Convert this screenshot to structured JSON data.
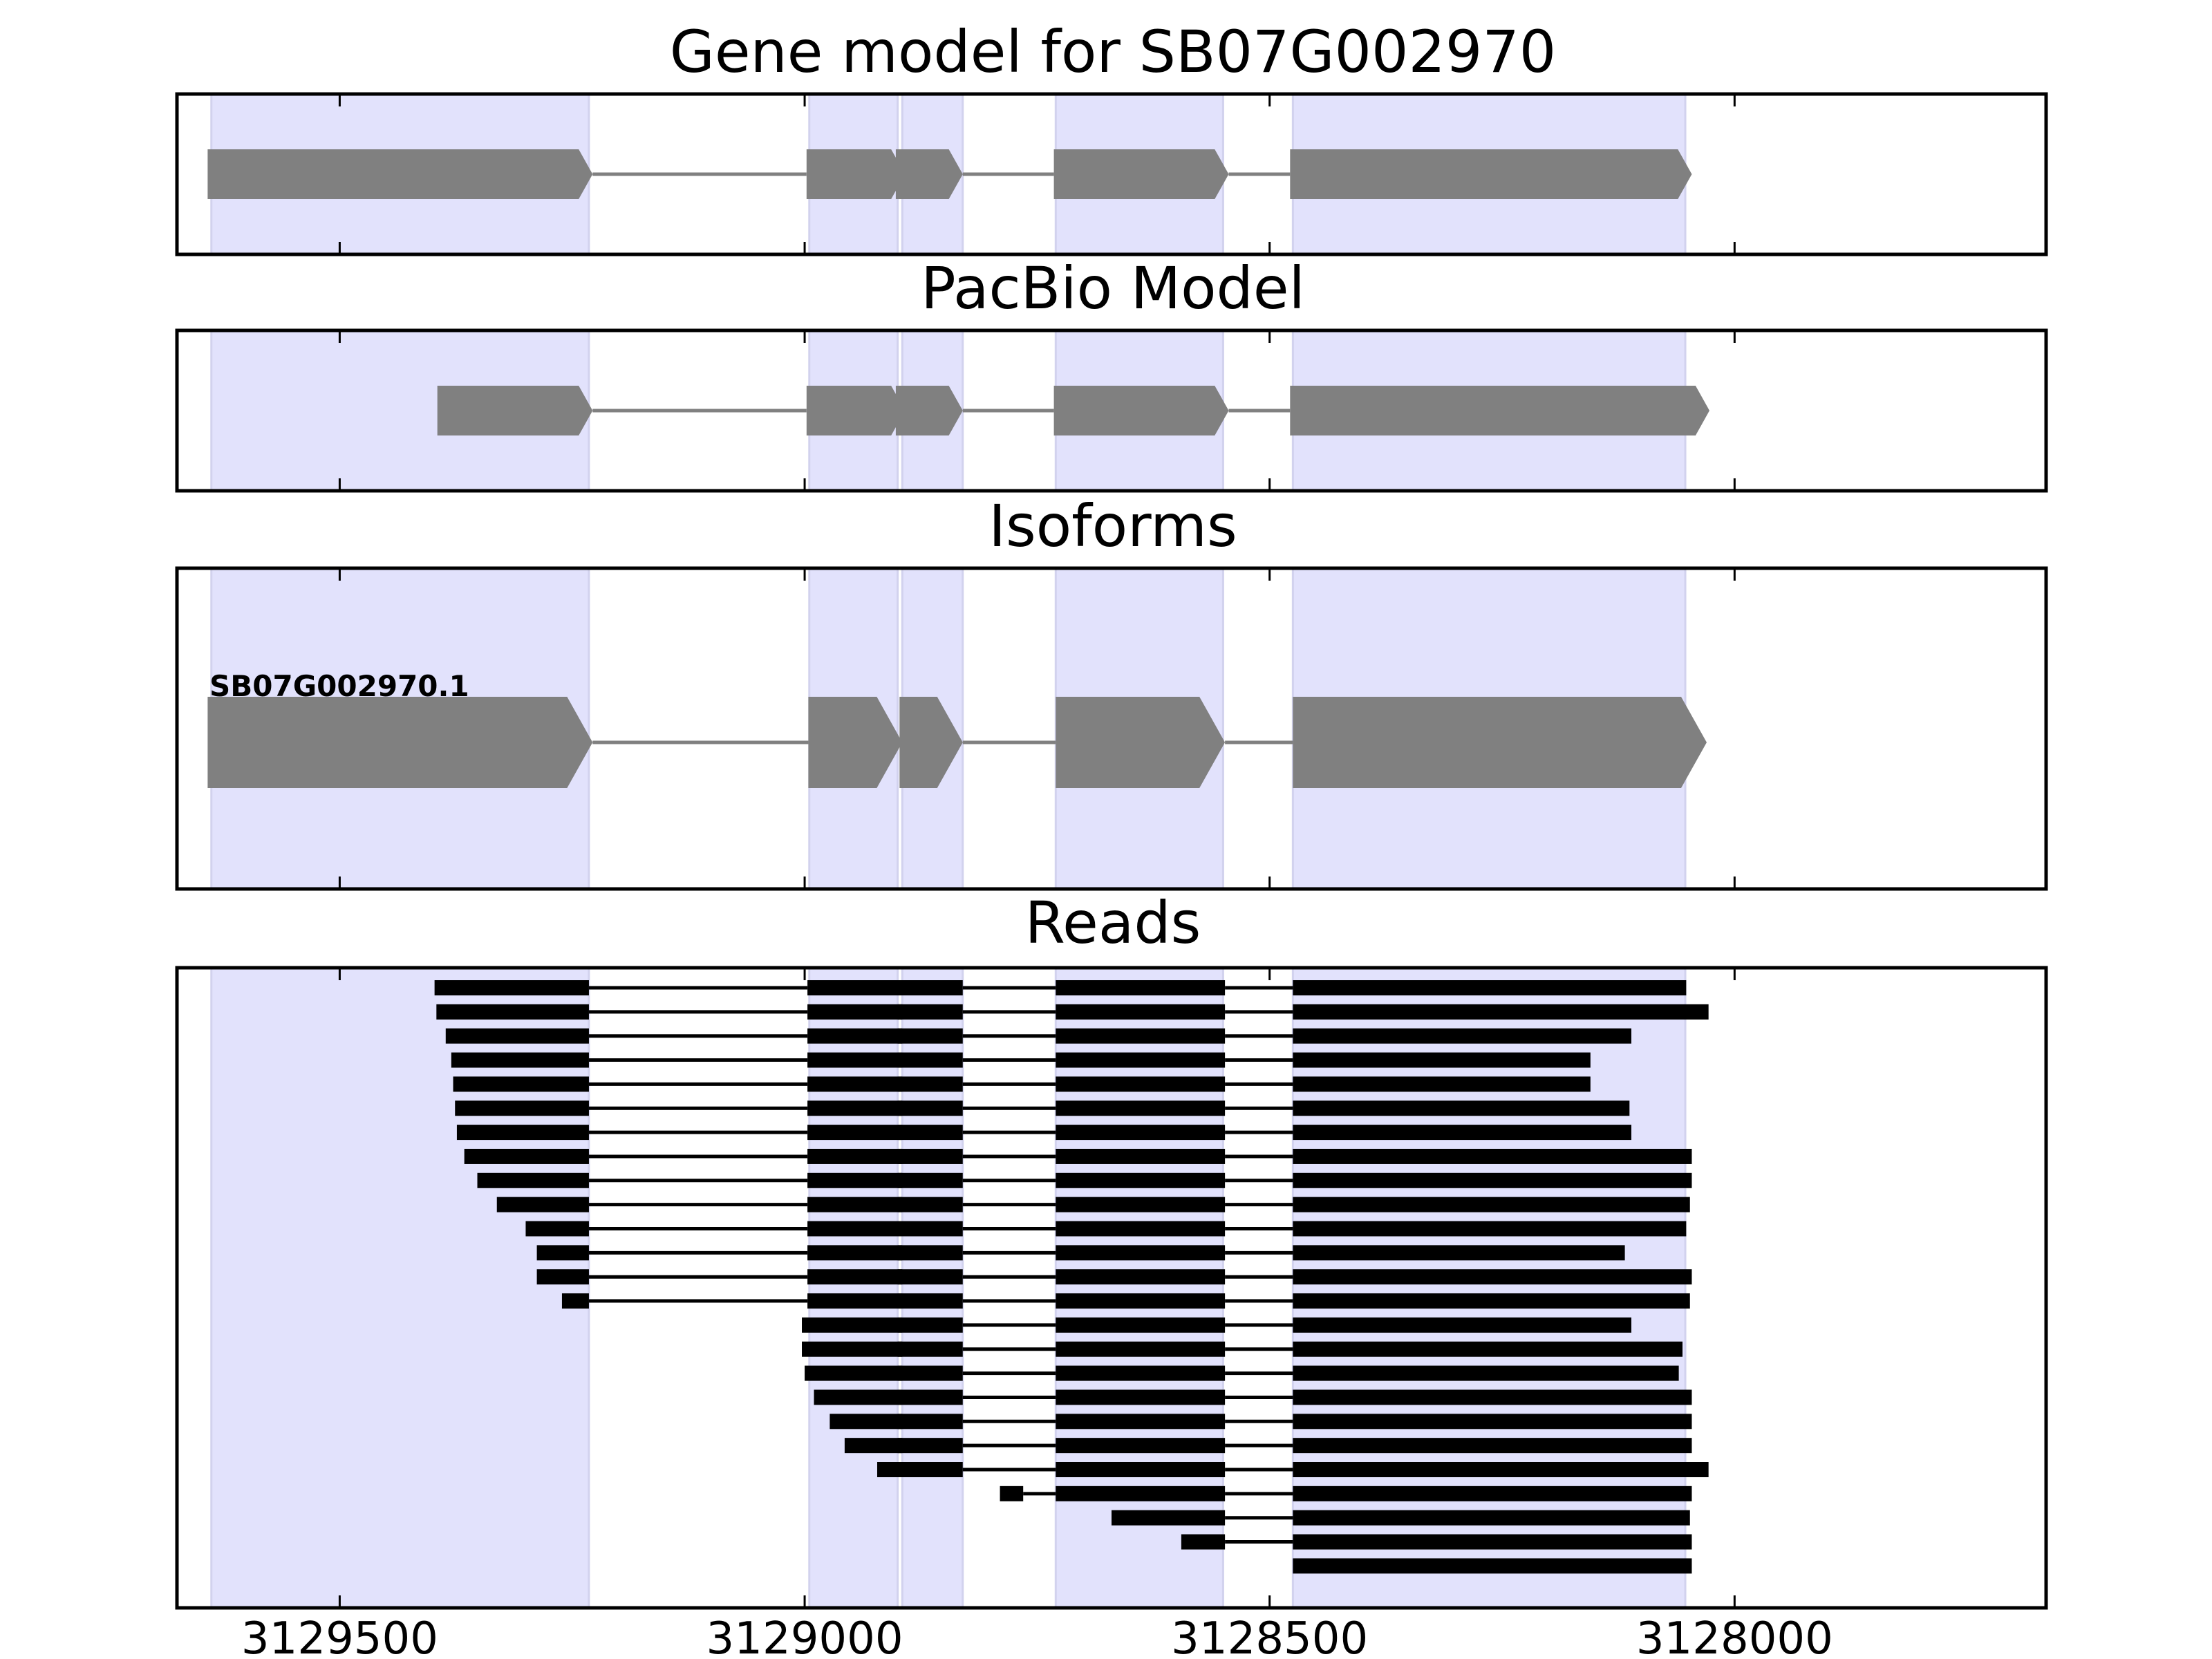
{
  "chart_data": {
    "type": "gene-track",
    "x_axis": {
      "range": [
        3129675,
        3127665
      ],
      "reversed": true,
      "ticks": [
        3129500,
        3129000,
        3128500,
        3128000
      ],
      "tick_labels": [
        "3129500",
        "3129000",
        "3128500",
        "3128000"
      ]
    },
    "exon_highlights": [
      [
        3129638,
        3129232
      ],
      [
        3128995,
        3128900
      ],
      [
        3128895,
        3128830
      ],
      [
        3128730,
        3128550
      ],
      [
        3128475,
        3128053
      ]
    ],
    "highlight_color": "#e2e2fc",
    "feature_color": "#808080",
    "read_color": "#000000",
    "panels": [
      {
        "title": "Gene model for SB07G002970",
        "exons": [
          [
            3129642,
            3129228
          ],
          [
            3128998,
            3128892
          ],
          [
            3128902,
            3128830
          ],
          [
            3128732,
            3128544
          ],
          [
            3128478,
            3128046
          ]
        ]
      },
      {
        "title": "PacBio Model",
        "exons": [
          [
            3129395,
            3129228
          ],
          [
            3128998,
            3128892
          ],
          [
            3128902,
            3128830
          ],
          [
            3128732,
            3128544
          ],
          [
            3128478,
            3128027
          ]
        ]
      },
      {
        "title": "Isoforms",
        "isoforms": [
          {
            "name": "SB07G002970.1",
            "exons": [
              [
                3129642,
                3129228
              ],
              [
                3128996,
                3128895
              ],
              [
                3128898,
                3128830
              ],
              [
                3128730,
                3128548
              ],
              [
                3128475,
                3128030
              ]
            ]
          }
        ]
      },
      {
        "title": "Reads",
        "reads": [
          [
            [
              3129398,
              3129232
            ],
            [
              3128997,
              3128895
            ],
            [
              3128900,
              3128830
            ],
            [
              3128730,
              3128548
            ],
            [
              3128475,
              3128052
            ]
          ],
          [
            [
              3129396,
              3129232
            ],
            [
              3128997,
              3128895
            ],
            [
              3128900,
              3128830
            ],
            [
              3128730,
              3128548
            ],
            [
              3128475,
              3128028
            ]
          ],
          [
            [
              3129386,
              3129232
            ],
            [
              3128997,
              3128895
            ],
            [
              3128900,
              3128830
            ],
            [
              3128730,
              3128548
            ],
            [
              3128475,
              3128111
            ]
          ],
          [
            [
              3129380,
              3129232
            ],
            [
              3128997,
              3128895
            ],
            [
              3128900,
              3128830
            ],
            [
              3128730,
              3128548
            ],
            [
              3128475,
              3128155
            ]
          ],
          [
            [
              3129378,
              3129232
            ],
            [
              3128997,
              3128895
            ],
            [
              3128900,
              3128830
            ],
            [
              3128730,
              3128548
            ],
            [
              3128475,
              3128155
            ]
          ],
          [
            [
              3129376,
              3129232
            ],
            [
              3128997,
              3128895
            ],
            [
              3128900,
              3128830
            ],
            [
              3128730,
              3128548
            ],
            [
              3128475,
              3128113
            ]
          ],
          [
            [
              3129374,
              3129232
            ],
            [
              3128997,
              3128895
            ],
            [
              3128900,
              3128830
            ],
            [
              3128730,
              3128548
            ],
            [
              3128475,
              3128111
            ]
          ],
          [
            [
              3129366,
              3129232
            ],
            [
              3128997,
              3128895
            ],
            [
              3128900,
              3128830
            ],
            [
              3128730,
              3128548
            ],
            [
              3128475,
              3128046
            ]
          ],
          [
            [
              3129352,
              3129232
            ],
            [
              3128997,
              3128895
            ],
            [
              3128900,
              3128830
            ],
            [
              3128730,
              3128548
            ],
            [
              3128475,
              3128046
            ]
          ],
          [
            [
              3129331,
              3129232
            ],
            [
              3128997,
              3128895
            ],
            [
              3128900,
              3128830
            ],
            [
              3128730,
              3128548
            ],
            [
              3128475,
              3128048
            ]
          ],
          [
            [
              3129300,
              3129232
            ],
            [
              3128997,
              3128895
            ],
            [
              3128900,
              3128830
            ],
            [
              3128730,
              3128548
            ],
            [
              3128475,
              3128052
            ]
          ],
          [
            [
              3129288,
              3129232
            ],
            [
              3128997,
              3128895
            ],
            [
              3128900,
              3128830
            ],
            [
              3128730,
              3128548
            ],
            [
              3128475,
              3128118
            ]
          ],
          [
            [
              3129288,
              3129232
            ],
            [
              3128997,
              3128895
            ],
            [
              3128900,
              3128830
            ],
            [
              3128730,
              3128548
            ],
            [
              3128475,
              3128046
            ]
          ],
          [
            [
              3129261,
              3129232
            ],
            [
              3128997,
              3128895
            ],
            [
              3128900,
              3128830
            ],
            [
              3128730,
              3128548
            ],
            [
              3128475,
              3128048
            ]
          ],
          [
            [
              3129003,
              3128895
            ],
            [
              3128900,
              3128830
            ],
            [
              3128730,
              3128548
            ],
            [
              3128475,
              3128111
            ]
          ],
          [
            [
              3129003,
              3128895
            ],
            [
              3128900,
              3128830
            ],
            [
              3128730,
              3128548
            ],
            [
              3128475,
              3128056
            ]
          ],
          [
            [
              3129000,
              3128895
            ],
            [
              3128900,
              3128830
            ],
            [
              3128730,
              3128548
            ],
            [
              3128475,
              3128060
            ]
          ],
          [
            [
              3128990,
              3128895
            ],
            [
              3128900,
              3128830
            ],
            [
              3128730,
              3128548
            ],
            [
              3128475,
              3128046
            ]
          ],
          [
            [
              3128973,
              3128895
            ],
            [
              3128900,
              3128830
            ],
            [
              3128730,
              3128548
            ],
            [
              3128475,
              3128046
            ]
          ],
          [
            [
              3128957,
              3128895
            ],
            [
              3128900,
              3128830
            ],
            [
              3128730,
              3128548
            ],
            [
              3128475,
              3128046
            ]
          ],
          [
            [
              3128922,
              3128895
            ],
            [
              3128900,
              3128830
            ],
            [
              3128730,
              3128548
            ],
            [
              3128475,
              3128028
            ]
          ],
          [
            [
              3128790,
              3128765
            ],
            [
              3128730,
              3128548
            ],
            [
              3128475,
              3128046
            ]
          ],
          [
            [
              3128670,
              3128548
            ],
            [
              3128475,
              3128048
            ]
          ],
          [
            [
              3128595,
              3128548
            ],
            [
              3128475,
              3128046
            ]
          ],
          [
            [
              3128475,
              3128046
            ]
          ]
        ]
      }
    ]
  }
}
